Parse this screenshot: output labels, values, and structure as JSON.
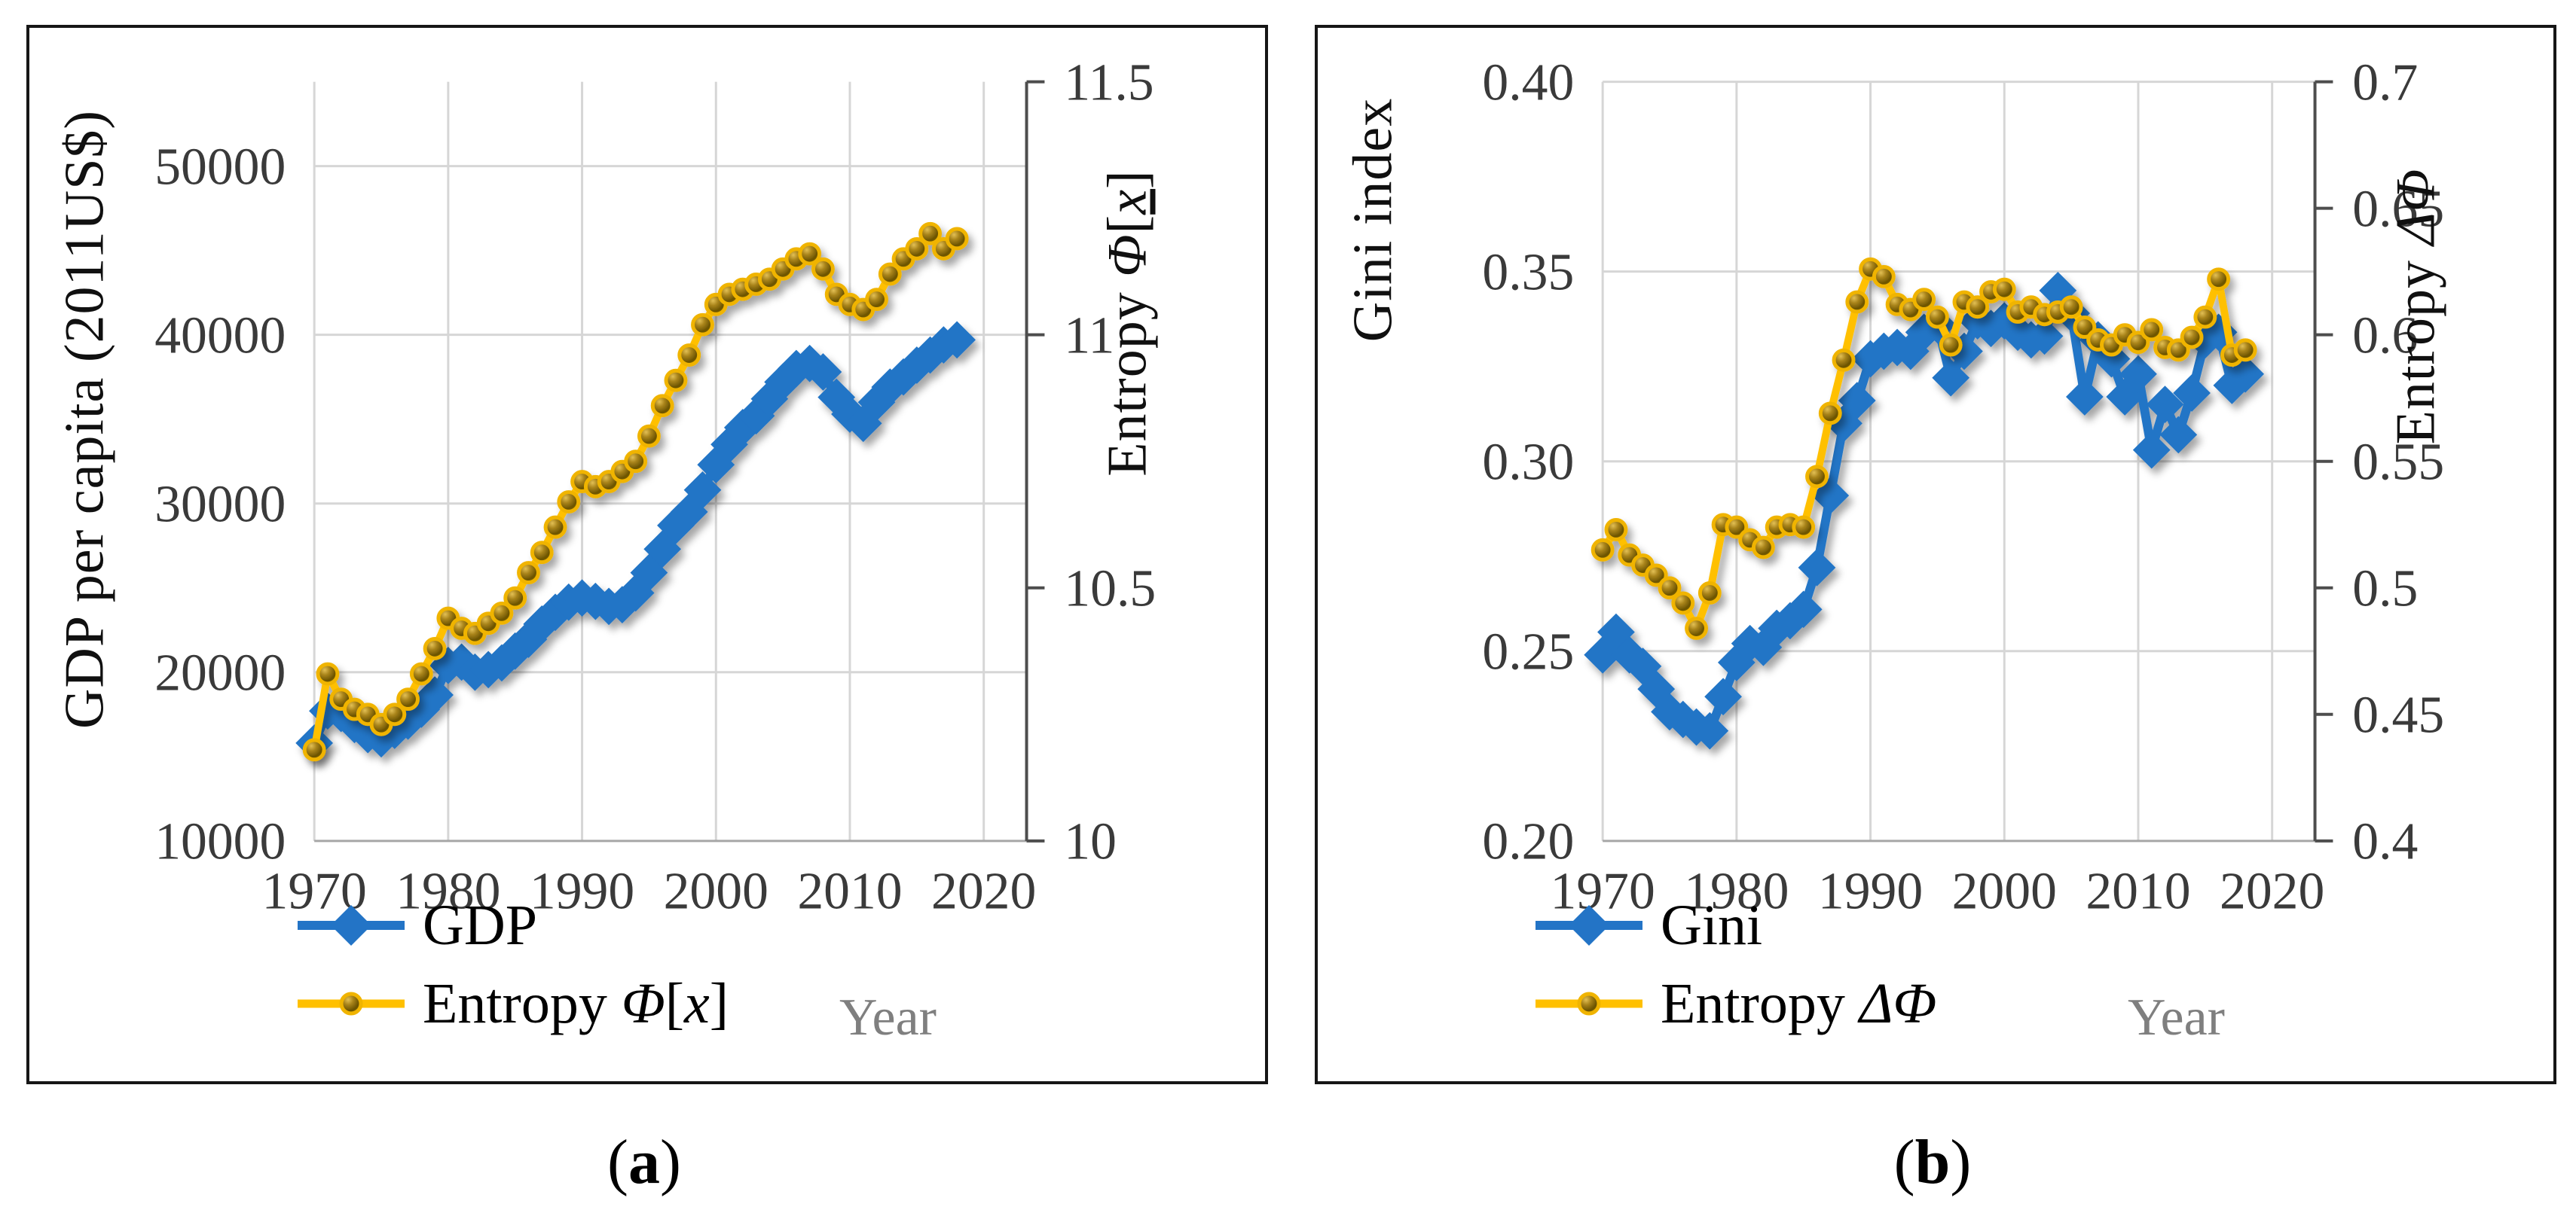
{
  "figure": {
    "captions": [
      {
        "pre": "(",
        "letter": "a",
        "post": ")"
      },
      {
        "pre": "(",
        "letter": "b",
        "post": ")"
      }
    ],
    "colors": {
      "series_blue": "#2374C6",
      "series_gold": "#FFC000",
      "gold_marker_edge": "#F0B400",
      "gridline": "#D6D6D6",
      "bottom_axis": "#A6A6A6",
      "right_axis": "#4D4D4D",
      "tick_text": "#3A3A3A",
      "year_text": "#7f7f7f",
      "panel_border": "#161616"
    }
  },
  "chart_data": [
    {
      "type": "line",
      "title": "",
      "xlabel": "Year",
      "ylabel_left": "GDP per capita (2011US$)",
      "ylabel_right": "Entropy Φ[x]",
      "x_range": [
        1970,
        2023.2
      ],
      "x_ticks": [
        1970,
        1980,
        1990,
        2000,
        2010,
        2020
      ],
      "x_tick_labels": [
        "1970",
        "1980",
        "1990",
        "2000",
        "2010",
        "2020"
      ],
      "years": [
        1970,
        1971,
        1972,
        1973,
        1974,
        1975,
        1976,
        1977,
        1978,
        1979,
        1980,
        1981,
        1982,
        1983,
        1984,
        1985,
        1986,
        1987,
        1988,
        1989,
        1990,
        1991,
        1992,
        1993,
        1994,
        1995,
        1996,
        1997,
        1998,
        1999,
        2000,
        2001,
        2002,
        2003,
        2004,
        2005,
        2006,
        2007,
        2008,
        2009,
        2010,
        2011,
        2012,
        2013,
        2014,
        2015,
        2016,
        2017,
        2018
      ],
      "left_axis": {
        "min": 10000,
        "max": 55000,
        "tick_values": [
          10000,
          20000,
          30000,
          40000,
          50000
        ],
        "tick_labels": [
          "10000",
          "20000",
          "30000",
          "40000",
          "50000"
        ],
        "title_parts": [
          {
            "t": "GDP per capita (2011US$)"
          }
        ]
      },
      "right_axis": {
        "min": 10,
        "max": 11.5,
        "tick_values": [
          10,
          10.5,
          11,
          11.5
        ],
        "tick_labels": [
          "10",
          "10.5",
          "11",
          "11.5"
        ],
        "title_parts": [
          {
            "t": "Entropy "
          },
          {
            "t": "Φ",
            "i": 1
          },
          {
            "t": "["
          },
          {
            "t": "x",
            "i": 1,
            "u": 1
          },
          {
            "t": "]"
          }
        ]
      },
      "legend": [
        {
          "key": "gdp",
          "label_parts": [
            {
              "t": "GDP"
            }
          ]
        },
        {
          "key": "entropy-phi-x",
          "label_parts": [
            {
              "t": "Entropy "
            },
            {
              "t": "Φ",
              "i": 1
            },
            {
              "t": "["
            },
            {
              "t": "x",
              "i": 1
            },
            {
              "t": "]"
            }
          ]
        }
      ],
      "series": [
        {
          "name": "GDP",
          "key": "gdp",
          "axis": "left",
          "marker": "diamond",
          "color": "#2374C6",
          "values": [
            15800,
            17700,
            17550,
            16900,
            16300,
            16050,
            16550,
            17100,
            17800,
            18650,
            20400,
            20600,
            20000,
            20150,
            20550,
            21250,
            21950,
            22850,
            23550,
            24150,
            24400,
            24200,
            23900,
            24000,
            24700,
            25900,
            27300,
            28700,
            29500,
            30800,
            32300,
            33500,
            34500,
            35200,
            36200,
            37200,
            38000,
            38300,
            37800,
            36300,
            35300,
            34750,
            36000,
            36900,
            37500,
            38200,
            38800,
            39400,
            39700
          ]
        },
        {
          "name": "Entropy Φ[x]",
          "key": "entropy-phi-x",
          "axis": "right",
          "marker": "circle",
          "color": "#FFC000",
          "values": [
            10.18,
            10.33,
            10.28,
            10.26,
            10.25,
            10.23,
            10.25,
            10.28,
            10.33,
            10.38,
            10.44,
            10.42,
            10.41,
            10.43,
            10.45,
            10.48,
            10.53,
            10.57,
            10.62,
            10.67,
            10.71,
            10.7,
            10.71,
            10.73,
            10.75,
            10.8,
            10.86,
            10.91,
            10.96,
            11.02,
            11.06,
            11.08,
            11.09,
            11.1,
            11.11,
            11.13,
            11.15,
            11.16,
            11.13,
            11.08,
            11.06,
            11.05,
            11.07,
            11.12,
            11.15,
            11.17,
            11.2,
            11.17,
            11.19
          ]
        }
      ]
    },
    {
      "type": "line",
      "title": "",
      "xlabel": "Year",
      "ylabel_left": "Gini index",
      "ylabel_right": "Entropy ΔΦ",
      "x_range": [
        1970,
        2023.2
      ],
      "x_ticks": [
        1970,
        1980,
        1990,
        2000,
        2010,
        2020
      ],
      "x_tick_labels": [
        "1970",
        "1980",
        "1990",
        "2000",
        "2010",
        "2020"
      ],
      "years": [
        1970,
        1971,
        1972,
        1973,
        1974,
        1975,
        1976,
        1977,
        1978,
        1979,
        1980,
        1981,
        1982,
        1983,
        1984,
        1985,
        1986,
        1987,
        1988,
        1989,
        1990,
        1991,
        1992,
        1993,
        1994,
        1995,
        1996,
        1997,
        1998,
        1999,
        2000,
        2001,
        2002,
        2003,
        2004,
        2005,
        2006,
        2007,
        2008,
        2009,
        2010,
        2011,
        2012,
        2013,
        2014,
        2015,
        2016,
        2017,
        2018
      ],
      "left_axis": {
        "min": 0.2,
        "max": 0.4,
        "tick_values": [
          0.2,
          0.25,
          0.3,
          0.35,
          0.4
        ],
        "tick_labels": [
          "0.20",
          "0.25",
          "0.30",
          "0.35",
          "0.40"
        ],
        "title_parts": [
          {
            "t": "Gini index"
          }
        ]
      },
      "right_axis": {
        "min": 0.4,
        "max": 0.7,
        "tick_values": [
          0.4,
          0.45,
          0.5,
          0.55,
          0.6,
          0.65,
          0.7
        ],
        "tick_labels": [
          "0.4",
          "0.45",
          "0.5",
          "0.55",
          "0.6",
          "0.65",
          "0.7"
        ],
        "title_parts": [
          {
            "t": "Entropy "
          },
          {
            "t": "Δ",
            "i": 1
          },
          {
            "t": "Φ",
            "i": 1
          }
        ]
      },
      "legend": [
        {
          "key": "gini",
          "label_parts": [
            {
              "t": "Gini"
            }
          ]
        },
        {
          "key": "entropy-delta-phi",
          "label_parts": [
            {
              "t": "Entropy "
            },
            {
              "t": "Δ",
              "i": 1
            },
            {
              "t": "Φ",
              "i": 1
            }
          ]
        }
      ],
      "series": [
        {
          "name": "Gini",
          "key": "gini",
          "axis": "left",
          "marker": "diamond",
          "color": "#2374C6",
          "values": [
            0.249,
            0.255,
            0.249,
            0.246,
            0.24,
            0.234,
            0.232,
            0.23,
            0.229,
            0.238,
            0.247,
            0.252,
            0.251,
            0.256,
            0.258,
            0.261,
            0.272,
            0.291,
            0.31,
            0.316,
            0.327,
            0.329,
            0.33,
            0.329,
            0.334,
            0.336,
            0.322,
            0.329,
            0.337,
            0.335,
            0.337,
            0.334,
            0.332,
            0.333,
            0.345,
            0.339,
            0.317,
            0.332,
            0.327,
            0.317,
            0.323,
            0.303,
            0.315,
            0.307,
            0.318,
            0.332,
            0.334,
            0.32,
            0.323
          ]
        },
        {
          "name": "Entropy ΔΦ",
          "key": "entropy-delta-phi",
          "axis": "right",
          "marker": "circle",
          "color": "#FFC000",
          "values": [
            0.515,
            0.523,
            0.513,
            0.509,
            0.505,
            0.5,
            0.494,
            0.484,
            0.498,
            0.525,
            0.524,
            0.519,
            0.516,
            0.524,
            0.525,
            0.524,
            0.544,
            0.569,
            0.59,
            0.613,
            0.626,
            0.623,
            0.612,
            0.61,
            0.614,
            0.607,
            0.596,
            0.613,
            0.611,
            0.617,
            0.618,
            0.609,
            0.611,
            0.608,
            0.609,
            0.611,
            0.603,
            0.598,
            0.596,
            0.6,
            0.597,
            0.602,
            0.595,
            0.594,
            0.599,
            0.607,
            0.622,
            0.592,
            0.594
          ]
        }
      ]
    }
  ]
}
